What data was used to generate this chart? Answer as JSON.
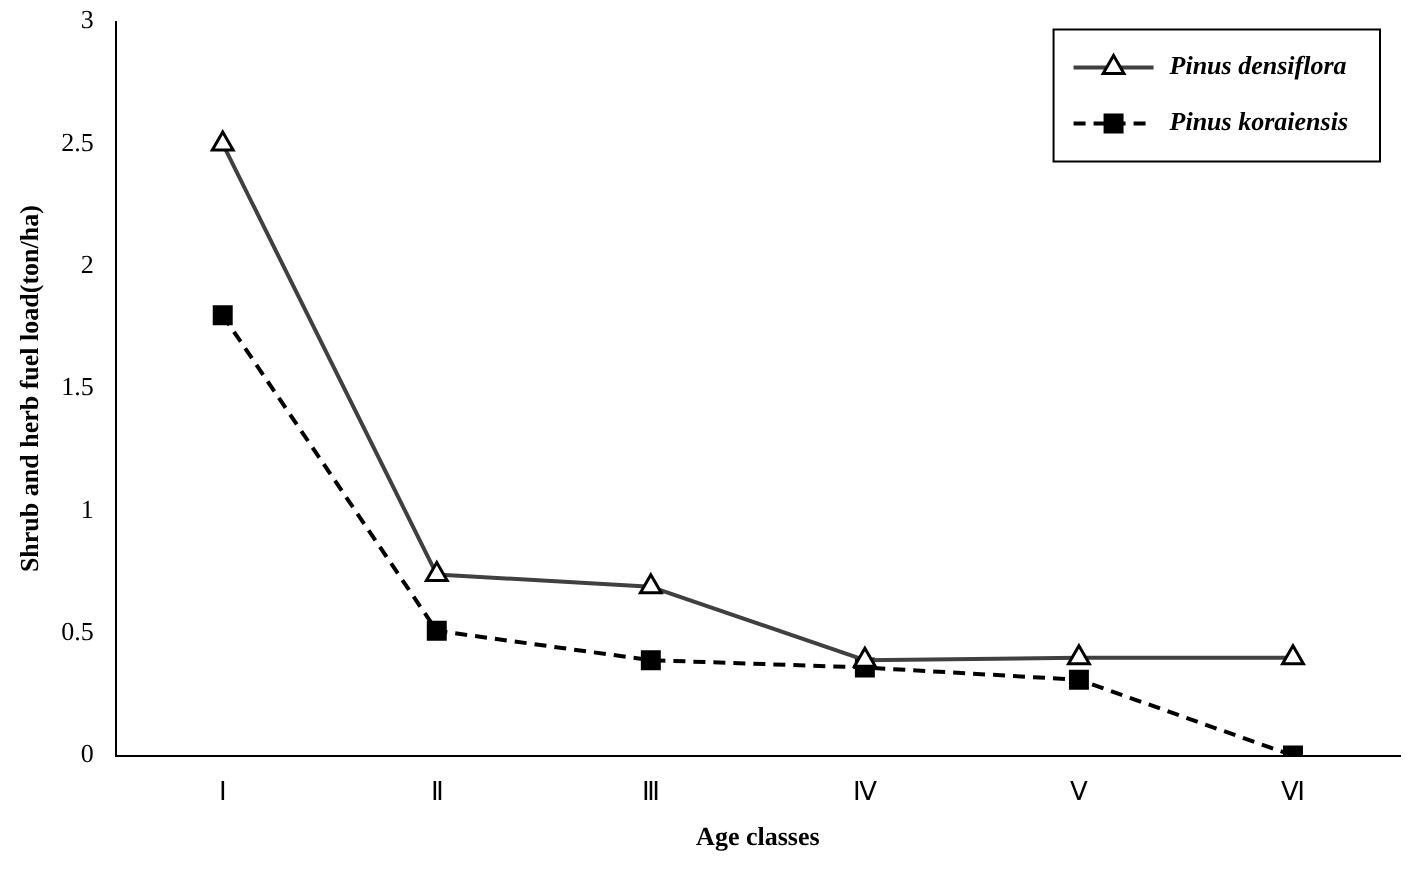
{
  "chart_data": {
    "type": "line",
    "xlabel": "Age classes",
    "ylabel": "Shrub and herb fuel load(ton/ha)",
    "categories": [
      "Ⅰ",
      "Ⅱ",
      "Ⅲ",
      "Ⅳ",
      "Ⅴ",
      "Ⅵ"
    ],
    "ylim": [
      0,
      3
    ],
    "yticks": [
      0,
      0.5,
      1,
      1.5,
      2,
      2.5,
      3
    ],
    "grid": false,
    "legend": "top right",
    "series": [
      {
        "name": "Pinus densiflora",
        "color": "#404040",
        "values": [
          2.5,
          0.74,
          0.69,
          0.39,
          0.4,
          0.4
        ],
        "marker": "triangle",
        "line_style": "solid"
      },
      {
        "name": "Pinus koraiensis",
        "color": "#000000",
        "values": [
          1.8,
          0.51,
          0.39,
          0.36,
          0.31,
          0
        ],
        "marker": "square",
        "line_style": "dashed"
      }
    ]
  }
}
